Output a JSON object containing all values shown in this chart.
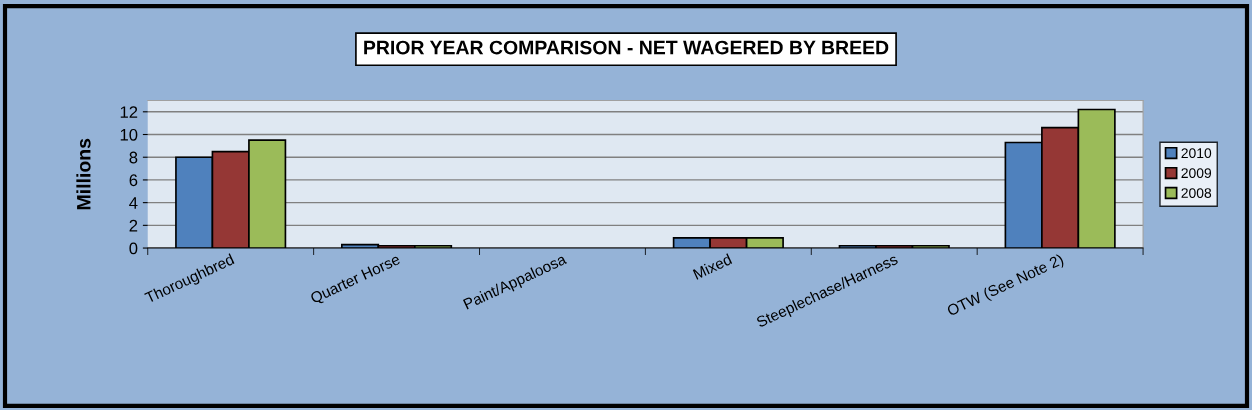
{
  "chart_data": {
    "type": "bar",
    "title": "PRIOR YEAR COMPARISON - NET WAGERED BY BREED",
    "ylabel": "Millions",
    "categories": [
      "Thoroughbred",
      "Quarter Horse",
      "Paint/Appaloosa",
      "Mixed",
      "Steeplechase/Harness",
      "OTW (See Note 2)"
    ],
    "series": [
      {
        "name": "2010",
        "color": "#4f81bd",
        "values": [
          8.0,
          0.3,
          0,
          0.9,
          0.2,
          9.3
        ]
      },
      {
        "name": "2009",
        "color": "#953735",
        "values": [
          8.5,
          0.2,
          0,
          0.9,
          0.2,
          10.6
        ]
      },
      {
        "name": "2008",
        "color": "#9bbb59",
        "values": [
          9.5,
          0.2,
          0,
          0.9,
          0.2,
          12.2
        ]
      }
    ],
    "ylim": [
      0,
      13
    ],
    "yticks": [
      0,
      2,
      4,
      6,
      8,
      10,
      12
    ],
    "grid": "y",
    "legend": "right"
  }
}
